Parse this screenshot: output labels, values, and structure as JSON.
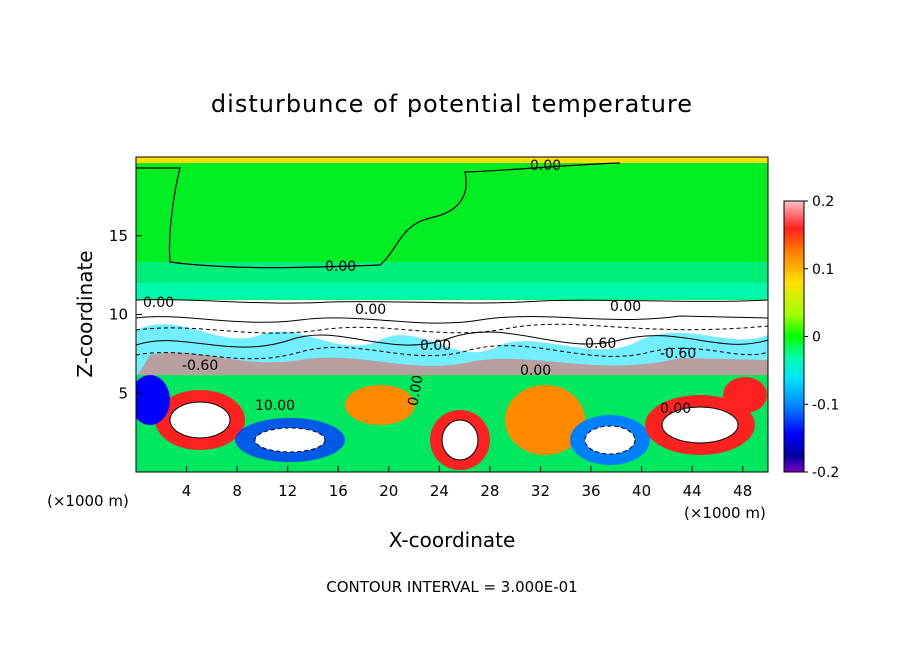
{
  "chart_data": {
    "type": "heatmap",
    "title": "disturbunce of potential temperature",
    "xlabel": "X-coordinate",
    "ylabel": "Z-coordinate",
    "x_unit_label": "(×1000 m)",
    "x_unit_label_right": "(×1000 m)",
    "xlim": [
      0,
      50
    ],
    "ylim": [
      0,
      20
    ],
    "x_ticks": [
      4,
      8,
      12,
      16,
      20,
      24,
      28,
      32,
      36,
      40,
      44,
      48
    ],
    "y_ticks": [
      5,
      10,
      15
    ],
    "colorbar": {
      "range": [
        -0.2,
        0.2
      ],
      "ticks": [
        "0.2",
        "0.1",
        "0",
        "-0.1",
        "-0.2"
      ],
      "colors": [
        "#ffb0c0",
        "#ff0000",
        "#ff8a00",
        "#ffe000",
        "#a0ff00",
        "#00ff00",
        "#00ffb0",
        "#00e0ff",
        "#0080ff",
        "#0000ff",
        "#0000a0",
        "#8000c0"
      ]
    },
    "contour_labels": [
      "0.00",
      "0.00",
      "0.00",
      "0.00",
      "0.00",
      "-0.60",
      "10.00",
      "0.00",
      "0.00",
      "0.00",
      "-0.60",
      "-0.60",
      "0.00"
    ],
    "footer": "CONTOUR INTERVAL = 3.000E-01"
  }
}
